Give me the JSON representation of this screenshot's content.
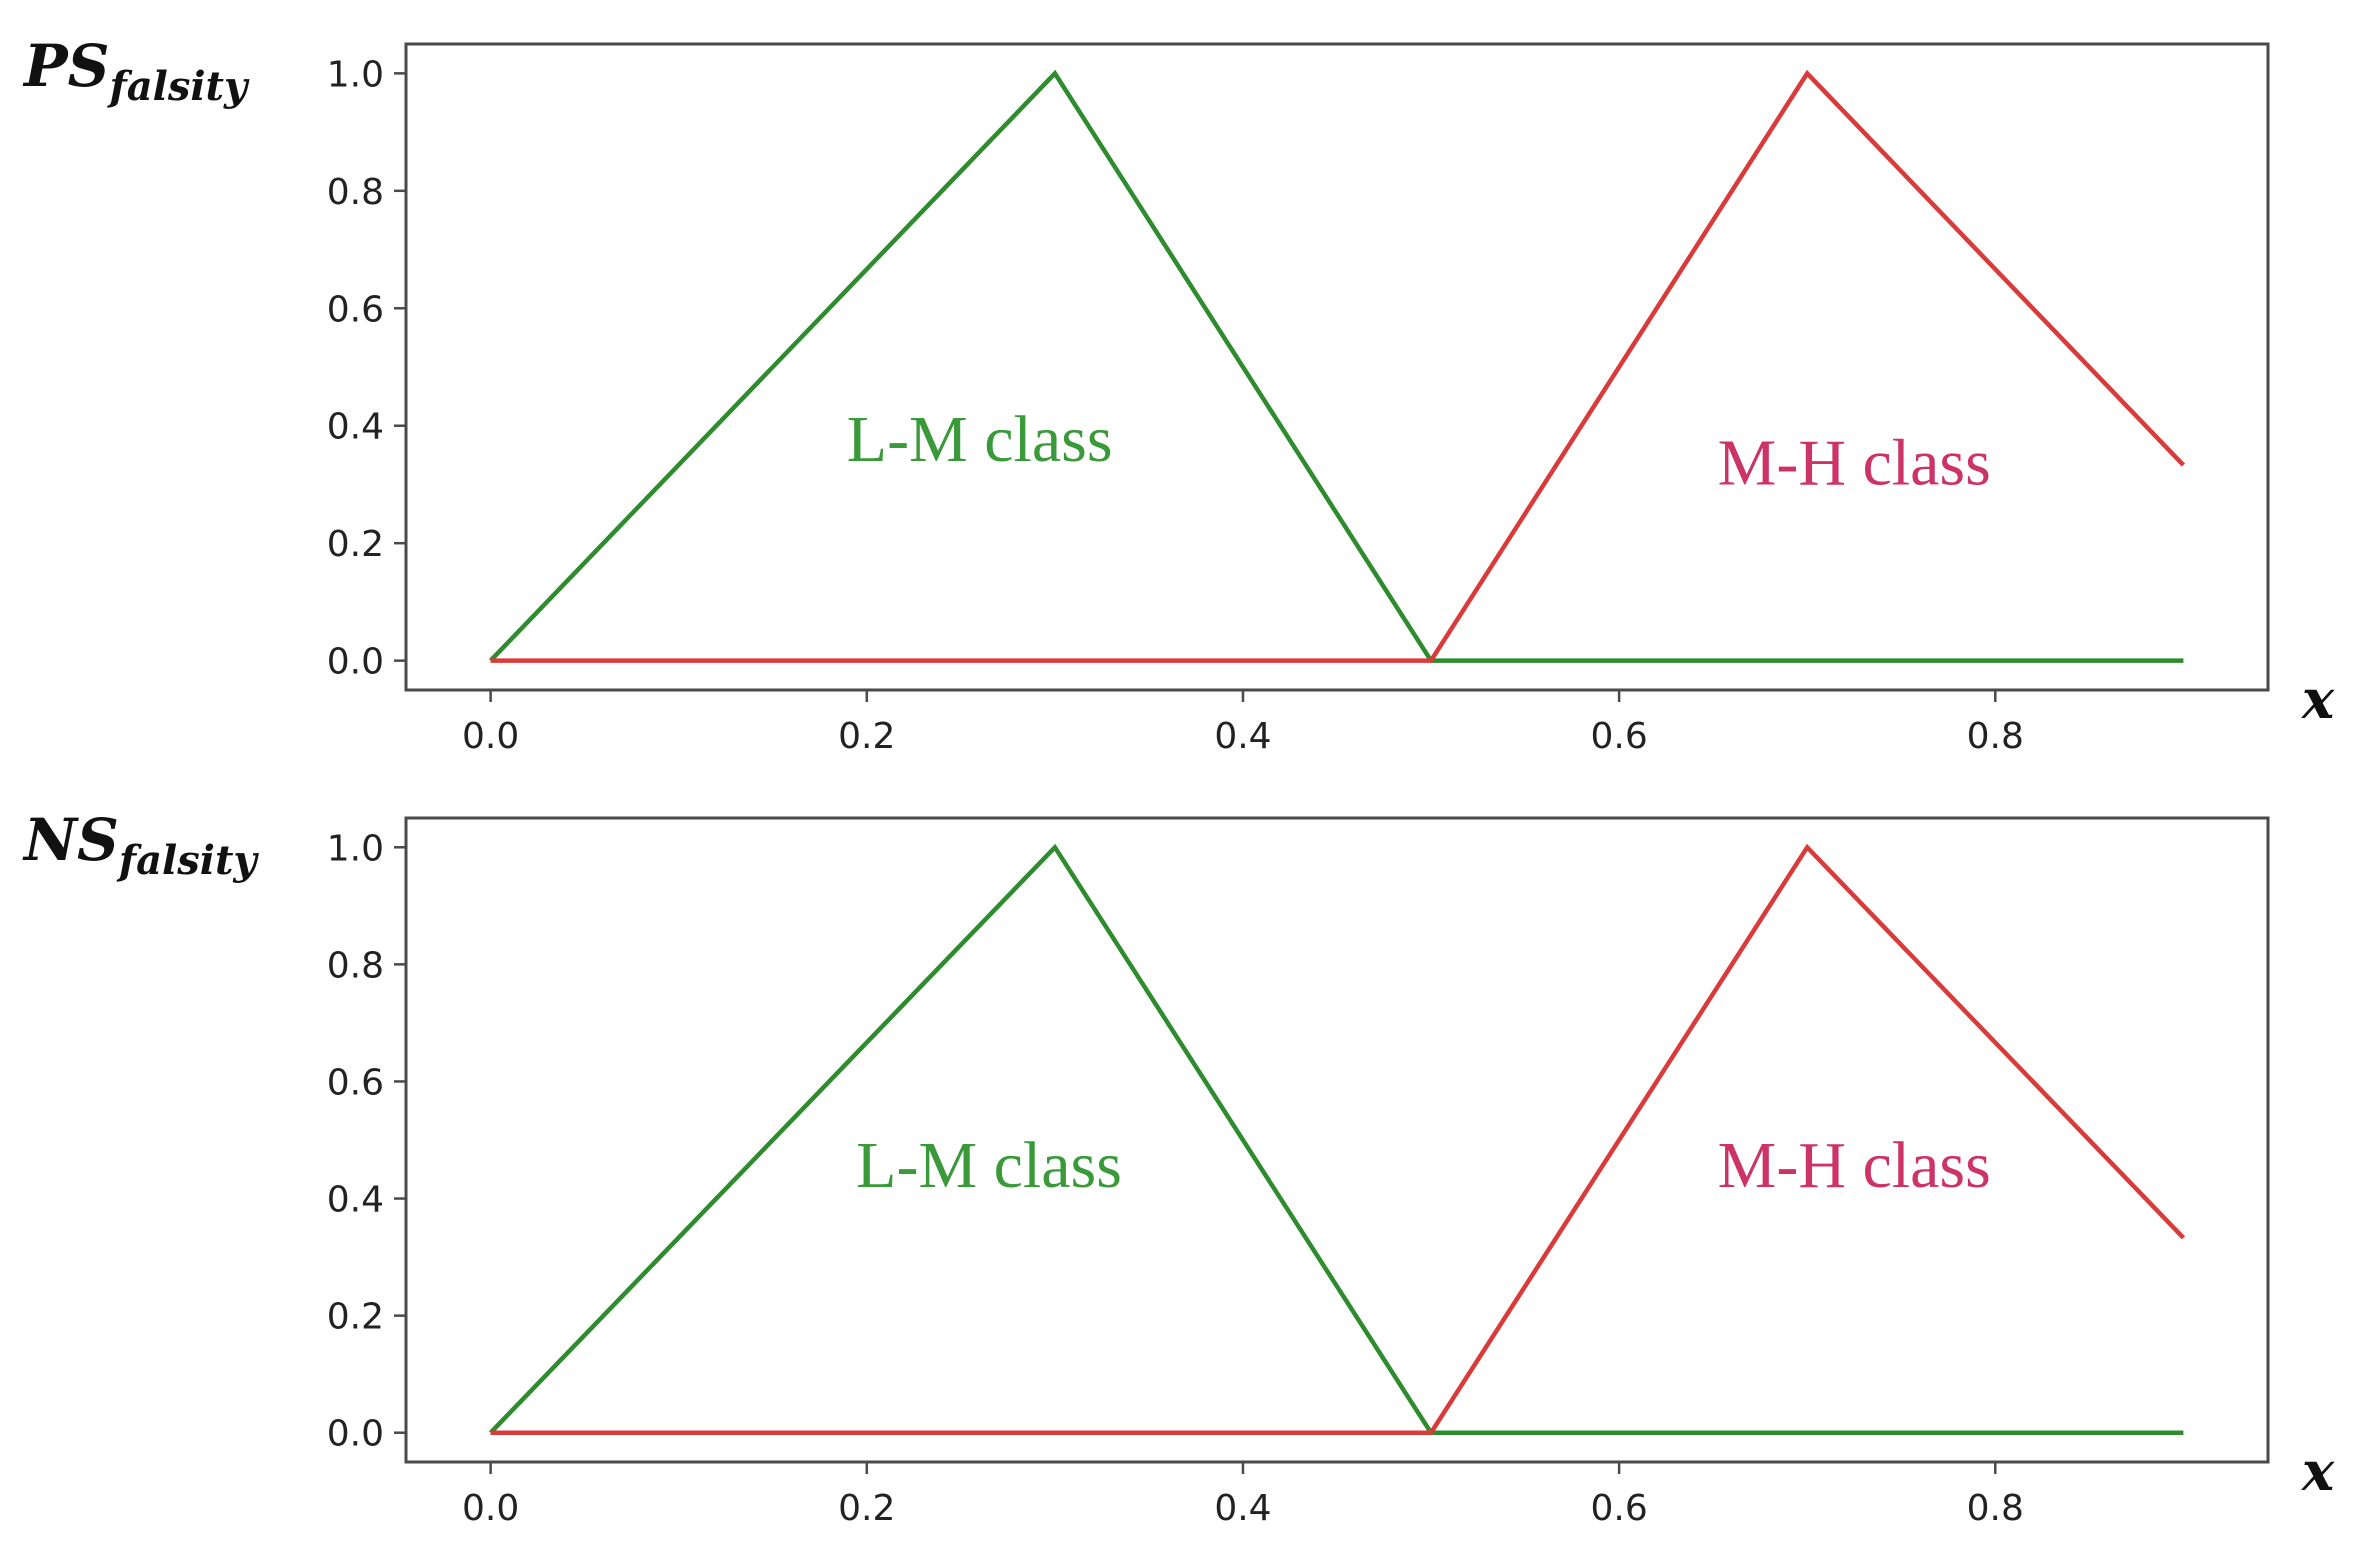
{
  "chart_data": [
    {
      "type": "line",
      "ylabel_main": "PS",
      "ylabel_sub": "falsity",
      "xlabel": "x",
      "xlim": [
        -0.045,
        0.945
      ],
      "ylim": [
        -0.05,
        1.05
      ],
      "xticks": [
        0.0,
        0.2,
        0.4,
        0.6,
        0.8
      ],
      "xtick_labels": [
        "0.0",
        "0.2",
        "0.4",
        "0.6",
        "0.8"
      ],
      "yticks": [
        0.0,
        0.2,
        0.4,
        0.6,
        0.8,
        1.0
      ],
      "ytick_labels": [
        "0.0",
        "0.2",
        "0.4",
        "0.6",
        "0.8",
        "1.0"
      ],
      "grid": false,
      "series": [
        {
          "color": "#2e8b2e",
          "x": [
            0.0,
            0.3,
            0.5,
            0.9
          ],
          "y": [
            0.0,
            1.0,
            0.0,
            0.0
          ]
        },
        {
          "color": "#d93a3a",
          "x": [
            0.0,
            0.5,
            0.7,
            0.9
          ],
          "y": [
            0.0,
            0.0,
            1.0,
            0.333
          ]
        }
      ],
      "annotations": [
        {
          "text": "L-M class",
          "x": 0.26,
          "y": 0.34,
          "color": "#3a9a3a"
        },
        {
          "text": "M-H class",
          "x": 0.725,
          "y": 0.3,
          "color": "#cc3366"
        }
      ]
    },
    {
      "type": "line",
      "ylabel_main": "NS",
      "ylabel_sub": "falsity",
      "xlabel": "x",
      "xlim": [
        -0.045,
        0.945
      ],
      "ylim": [
        -0.05,
        1.05
      ],
      "xticks": [
        0.0,
        0.2,
        0.4,
        0.6,
        0.8
      ],
      "xtick_labels": [
        "0.0",
        "0.2",
        "0.4",
        "0.6",
        "0.8"
      ],
      "yticks": [
        0.0,
        0.2,
        0.4,
        0.6,
        0.8,
        1.0
      ],
      "ytick_labels": [
        "0.0",
        "0.2",
        "0.4",
        "0.6",
        "0.8",
        "1.0"
      ],
      "grid": false,
      "series": [
        {
          "color": "#2e8b2e",
          "x": [
            0.0,
            0.3,
            0.5,
            0.9
          ],
          "y": [
            0.0,
            1.0,
            0.0,
            0.0
          ]
        },
        {
          "color": "#d93a3a",
          "x": [
            0.0,
            0.5,
            0.7,
            0.9
          ],
          "y": [
            0.0,
            0.0,
            1.0,
            0.333
          ]
        }
      ],
      "annotations": [
        {
          "text": "L-M class",
          "x": 0.265,
          "y": 0.42,
          "color": "#3a9a3a"
        },
        {
          "text": "M-H class",
          "x": 0.725,
          "y": 0.42,
          "color": "#cc3366"
        }
      ]
    }
  ]
}
